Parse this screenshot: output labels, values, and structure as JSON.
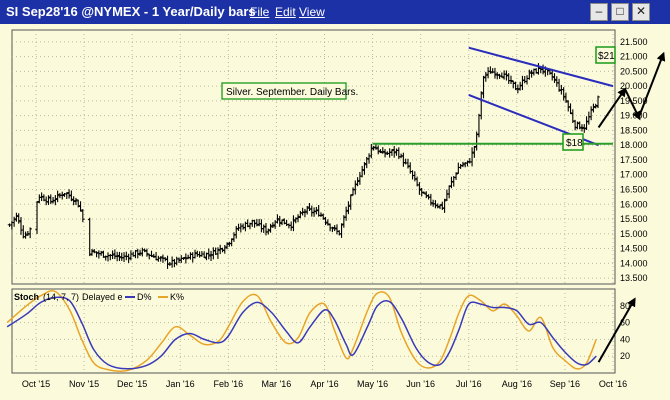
{
  "window": {
    "title": "SI Sep28'16 @NYMEX - 1 Year/Daily bars",
    "menu": [
      "File",
      "Edit",
      "View"
    ],
    "controls": [
      "–",
      "□",
      "✕"
    ]
  },
  "annotations": {
    "description": "Silver. September. Daily Bars.",
    "target_label": "$21",
    "support_label": "$18"
  },
  "colors": {
    "title_bg": "#1c31a6",
    "chart_bg": "#fbfbdc",
    "channel": "#2b2bbd",
    "support": "#2c9e2c",
    "label_border": "#1a9a1a",
    "d_line": "#3a3ab8",
    "k_line": "#e8a428",
    "bars": "#000000"
  },
  "chart_data": [
    {
      "type": "ohlc",
      "x_labels": [
        "Oct '15",
        "Nov '15",
        "Dec '15",
        "Jan '16",
        "Feb '16",
        "Mar '16",
        "Apr '16",
        "May '16",
        "Jun '16",
        "Jul '16",
        "Aug '16",
        "Sep '16",
        "Oct '16"
      ],
      "xlim": [
        0,
        12
      ],
      "ylim": [
        13.3,
        21.9
      ],
      "y_ticks": [
        13.5,
        14.0,
        14.5,
        15.0,
        15.5,
        16.0,
        16.5,
        17.0,
        17.5,
        18.0,
        18.5,
        19.0,
        19.5,
        20.0,
        20.5,
        21.0,
        21.5
      ],
      "y_tick_labels": [
        "13.500",
        "14.000",
        "14.500",
        "15.000",
        "15.500",
        "16.000",
        "16.500",
        "17.000",
        "17.500",
        "18.000",
        "18.500",
        "19.000",
        "19.500",
        "20.000",
        "20.500",
        "21.000",
        "21.500"
      ],
      "grid": true,
      "close_points": [
        [
          -0.55,
          15.3
        ],
        [
          -0.4,
          15.6
        ],
        [
          -0.25,
          14.9
        ],
        [
          -0.1,
          15.2
        ],
        [
          0.05,
          16.3
        ],
        [
          0.3,
          16.1
        ],
        [
          0.6,
          16.4
        ],
        [
          0.85,
          16.1
        ],
        [
          0.95,
          15.7
        ],
        [
          1.1,
          14.4
        ],
        [
          1.4,
          14.3
        ],
        [
          1.8,
          14.2
        ],
        [
          2.2,
          14.4
        ],
        [
          2.5,
          14.2
        ],
        [
          2.8,
          14.0
        ],
        [
          3.0,
          14.1
        ],
        [
          3.3,
          14.3
        ],
        [
          3.6,
          14.3
        ],
        [
          3.85,
          14.5
        ],
        [
          4.0,
          14.7
        ],
        [
          4.2,
          15.2
        ],
        [
          4.5,
          15.4
        ],
        [
          4.8,
          15.1
        ],
        [
          5.0,
          15.5
        ],
        [
          5.3,
          15.3
        ],
        [
          5.6,
          15.8
        ],
        [
          5.9,
          15.7
        ],
        [
          6.1,
          15.3
        ],
        [
          6.3,
          15.0
        ],
        [
          6.5,
          16.0
        ],
        [
          6.7,
          16.9
        ],
        [
          6.85,
          17.4
        ],
        [
          7.0,
          18.0
        ],
        [
          7.2,
          17.7
        ],
        [
          7.5,
          17.8
        ],
        [
          7.75,
          17.2
        ],
        [
          8.0,
          16.4
        ],
        [
          8.2,
          16.1
        ],
        [
          8.45,
          15.9
        ],
        [
          8.6,
          16.6
        ],
        [
          8.8,
          17.3
        ],
        [
          9.0,
          17.4
        ],
        [
          9.15,
          18.1
        ],
        [
          9.3,
          20.3
        ],
        [
          9.45,
          20.5
        ],
        [
          9.7,
          20.4
        ],
        [
          10.0,
          19.9
        ],
        [
          10.25,
          20.4
        ],
        [
          10.5,
          20.6
        ],
        [
          10.75,
          20.3
        ],
        [
          11.0,
          19.6
        ],
        [
          11.2,
          18.7
        ],
        [
          11.4,
          18.6
        ],
        [
          11.6,
          19.3
        ],
        [
          11.7,
          19.6
        ]
      ],
      "channel_upper": [
        [
          9.0,
          21.3
        ],
        [
          12.0,
          20.0
        ]
      ],
      "channel_lower": [
        [
          9.0,
          19.7
        ],
        [
          11.7,
          18.0
        ]
      ],
      "support_line": {
        "x": [
          7.0,
          12.0
        ],
        "y": 18.05
      },
      "annotation_arrows": [
        [
          [
            11.7,
            18.6
          ],
          [
            12.25,
            19.9
          ]
        ],
        [
          [
            12.25,
            19.9
          ],
          [
            12.55,
            18.9
          ]
        ],
        [
          [
            12.55,
            19.0
          ],
          [
            13.05,
            21.1
          ]
        ]
      ]
    },
    {
      "type": "line",
      "title": "Stoch",
      "params": "(14, 7, 7)",
      "legend": [
        "Delayed e",
        "D%",
        "K%"
      ],
      "legend_placement": "top-left",
      "x_labels": [
        "Oct '15",
        "Nov '15",
        "Dec '15",
        "Jan '16",
        "Feb '16",
        "Mar '16",
        "Apr '16",
        "May '16",
        "Jun '16",
        "Jul '16",
        "Aug '16",
        "Sep '16",
        "Oct '16"
      ],
      "xlim": [
        0,
        12
      ],
      "ylim": [
        0,
        100
      ],
      "y_ticks": [
        20,
        40,
        60,
        80
      ],
      "y_tick_labels": [
        "20",
        "40",
        "60",
        "80"
      ],
      "series": [
        {
          "name": "D%",
          "values": [
            [
              -0.6,
              55
            ],
            [
              -0.2,
              70
            ],
            [
              0.1,
              84
            ],
            [
              0.4,
              90
            ],
            [
              0.7,
              86
            ],
            [
              0.95,
              60
            ],
            [
              1.2,
              28
            ],
            [
              1.5,
              10
            ],
            [
              1.9,
              5
            ],
            [
              2.3,
              9
            ],
            [
              2.6,
              20
            ],
            [
              2.9,
              40
            ],
            [
              3.2,
              47
            ],
            [
              3.5,
              40
            ],
            [
              3.8,
              36
            ],
            [
              4.0,
              44
            ],
            [
              4.3,
              72
            ],
            [
              4.6,
              84
            ],
            [
              4.9,
              72
            ],
            [
              5.2,
              50
            ],
            [
              5.45,
              36
            ],
            [
              5.7,
              55
            ],
            [
              6.0,
              75
            ],
            [
              6.2,
              64
            ],
            [
              6.45,
              34
            ],
            [
              6.6,
              22
            ],
            [
              6.9,
              56
            ],
            [
              7.1,
              80
            ],
            [
              7.35,
              85
            ],
            [
              7.6,
              65
            ],
            [
              7.9,
              30
            ],
            [
              8.15,
              13
            ],
            [
              8.4,
              10
            ],
            [
              8.6,
              25
            ],
            [
              8.8,
              52
            ],
            [
              9.0,
              82
            ],
            [
              9.25,
              82
            ],
            [
              9.5,
              78
            ],
            [
              9.75,
              78
            ],
            [
              10.0,
              74
            ],
            [
              10.25,
              58
            ],
            [
              10.5,
              60
            ],
            [
              10.75,
              42
            ],
            [
              11.0,
              25
            ],
            [
              11.25,
              12
            ],
            [
              11.45,
              10
            ],
            [
              11.65,
              20
            ]
          ]
        },
        {
          "name": "K%",
          "values": [
            [
              -0.6,
              60
            ],
            [
              -0.2,
              80
            ],
            [
              0.1,
              92
            ],
            [
              0.4,
              97
            ],
            [
              0.7,
              75
            ],
            [
              0.95,
              40
            ],
            [
              1.2,
              12
            ],
            [
              1.5,
              4
            ],
            [
              1.9,
              3
            ],
            [
              2.3,
              15
            ],
            [
              2.6,
              35
            ],
            [
              2.9,
              55
            ],
            [
              3.2,
              45
            ],
            [
              3.5,
              34
            ],
            [
              3.8,
              38
            ],
            [
              4.0,
              55
            ],
            [
              4.3,
              85
            ],
            [
              4.6,
              92
            ],
            [
              4.9,
              60
            ],
            [
              5.2,
              36
            ],
            [
              5.45,
              42
            ],
            [
              5.7,
              72
            ],
            [
              6.0,
              82
            ],
            [
              6.2,
              52
            ],
            [
              6.45,
              18
            ],
            [
              6.6,
              30
            ],
            [
              6.9,
              75
            ],
            [
              7.1,
              95
            ],
            [
              7.35,
              90
            ],
            [
              7.6,
              48
            ],
            [
              7.9,
              15
            ],
            [
              8.15,
              6
            ],
            [
              8.4,
              14
            ],
            [
              8.6,
              40
            ],
            [
              8.8,
              72
            ],
            [
              9.0,
              92
            ],
            [
              9.25,
              86
            ],
            [
              9.5,
              74
            ],
            [
              9.75,
              82
            ],
            [
              10.0,
              68
            ],
            [
              10.25,
              50
            ],
            [
              10.5,
              66
            ],
            [
              10.75,
              30
            ],
            [
              11.0,
              15
            ],
            [
              11.25,
              5
            ],
            [
              11.45,
              12
            ],
            [
              11.65,
              40
            ]
          ]
        }
      ],
      "annotation_arrows": [
        [
          [
            11.7,
            13
          ],
          [
            12.45,
            88
          ]
        ]
      ]
    }
  ]
}
